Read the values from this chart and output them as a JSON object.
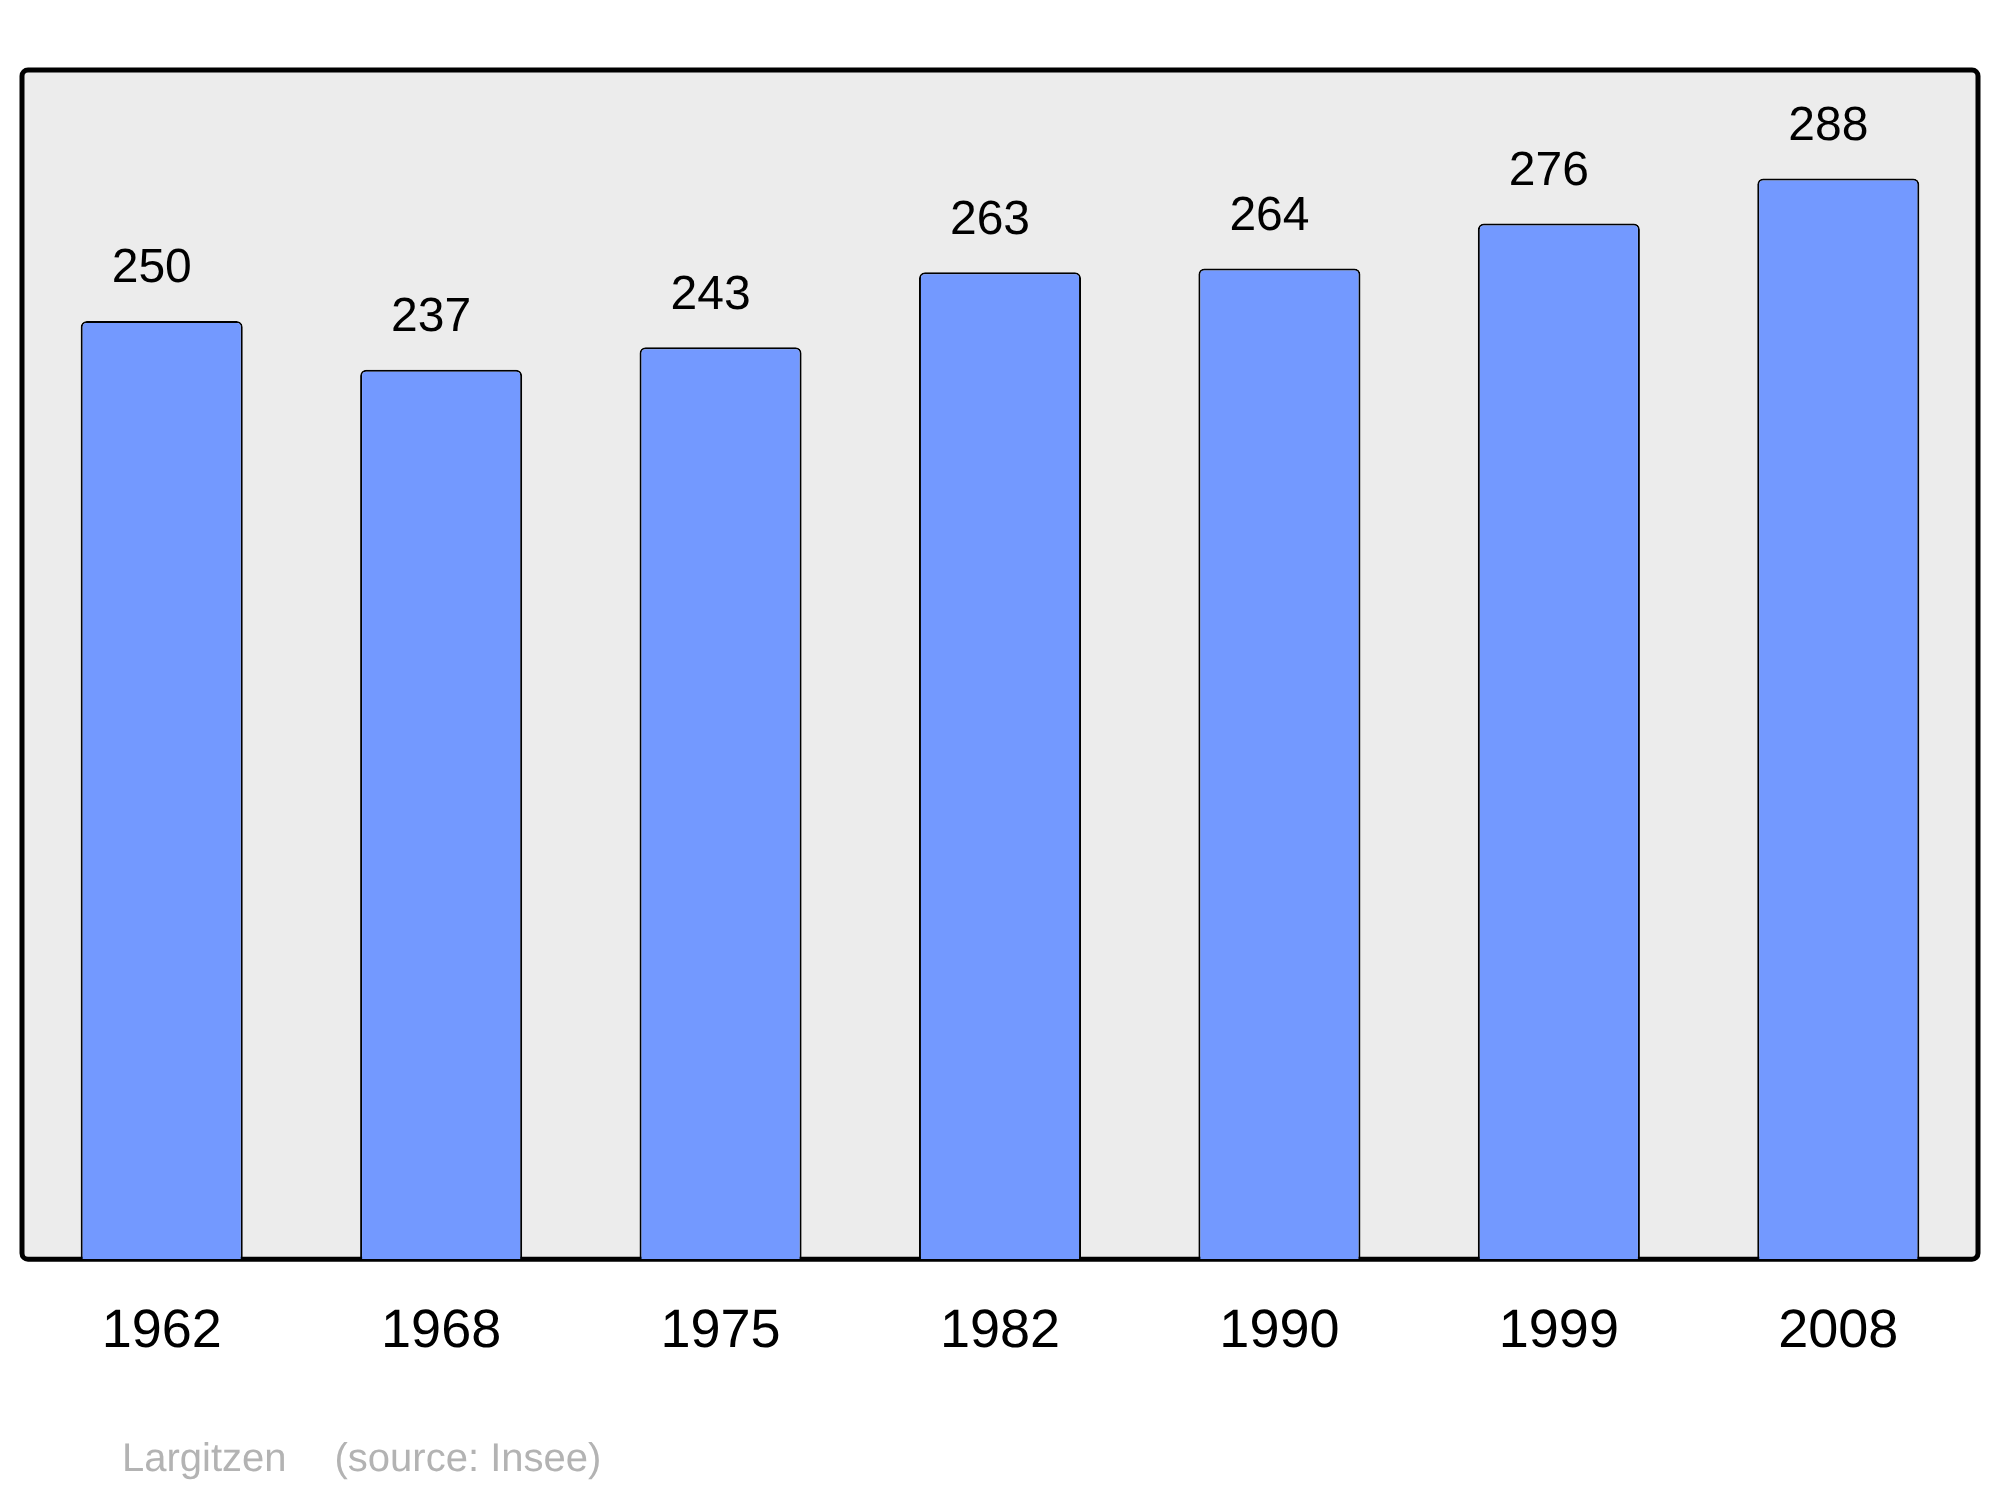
{
  "chart_data": {
    "type": "bar",
    "categories": [
      "1962",
      "1968",
      "1975",
      "1982",
      "1990",
      "1999",
      "2008"
    ],
    "values": [
      250,
      237,
      243,
      263,
      264,
      276,
      288
    ],
    "color": "#7399ff",
    "data_labels": true,
    "grid": false,
    "legend": false,
    "annotations": [
      "Largitzen",
      "(source: Insee)"
    ]
  }
}
